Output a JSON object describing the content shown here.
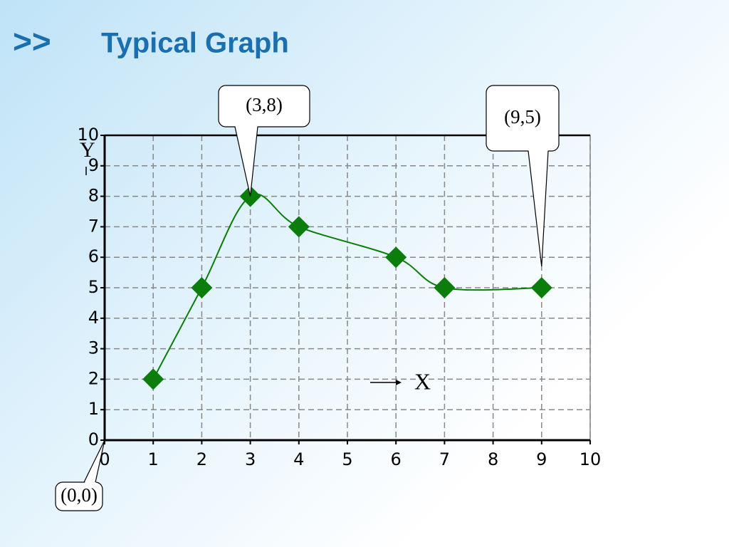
{
  "header": {
    "marker": ">>"
  },
  "chart_data": {
    "type": "line",
    "title": "Typical Graph",
    "x_label": "X",
    "y_label": "Y",
    "x": [
      1,
      2,
      3,
      4,
      6,
      7,
      9
    ],
    "series": [
      {
        "values": [
          2,
          5,
          8,
          7,
          6,
          5,
          5
        ],
        "color": "#0a7d0a"
      }
    ],
    "xlim": [
      0,
      10
    ],
    "ylim": [
      0,
      10
    ],
    "xticks": [
      0,
      1,
      2,
      3,
      4,
      5,
      6,
      7,
      8,
      9,
      10
    ],
    "yticks": [
      0,
      1,
      2,
      3,
      4,
      5,
      6,
      7,
      8,
      9,
      10
    ],
    "grid": true,
    "annotations": [
      {
        "text": "(3,8)",
        "x": 3,
        "y": 8
      },
      {
        "text": "(9,5)",
        "x": 9,
        "y": 5
      },
      {
        "text": "(0,0)",
        "x": 0,
        "y": 0
      }
    ]
  }
}
